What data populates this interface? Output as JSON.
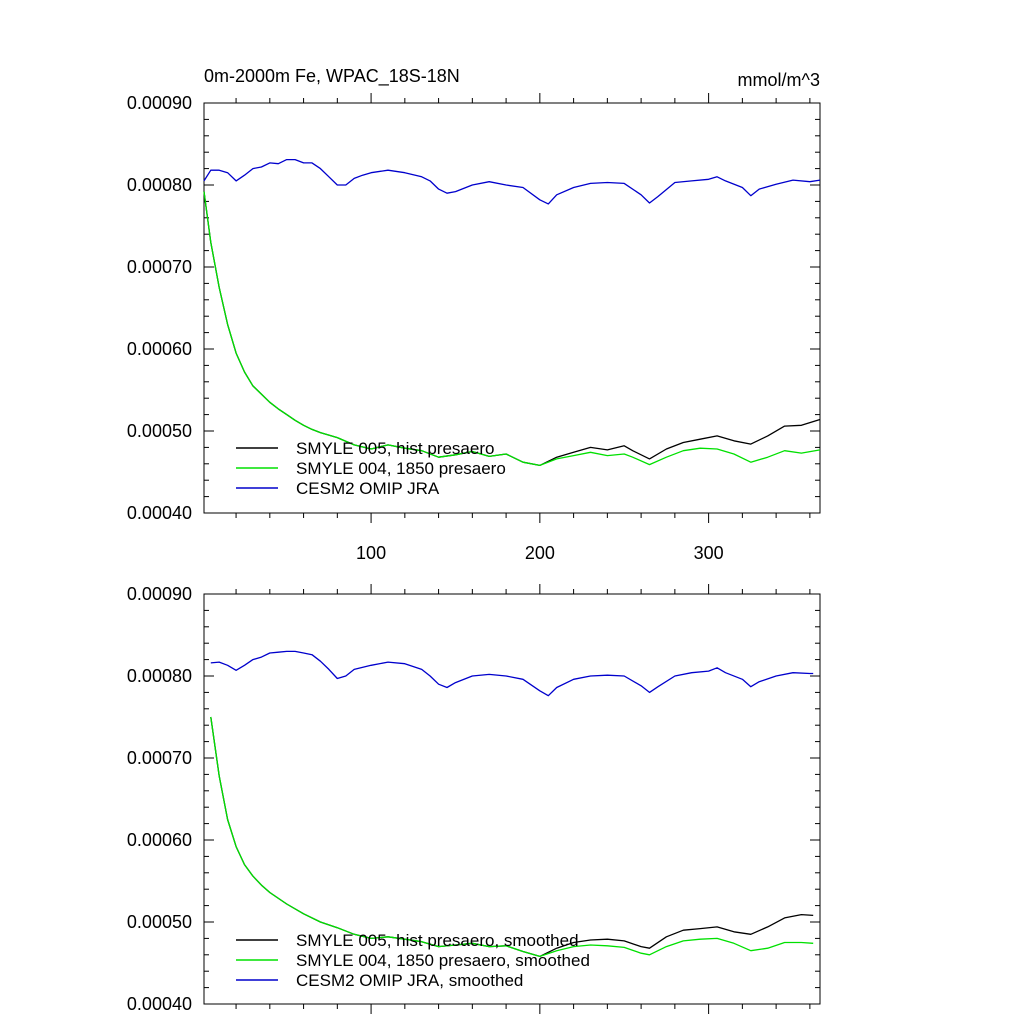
{
  "colors": {
    "smyle005": "#000000",
    "smyle004": "#00e000",
    "omip": "#0000cc"
  },
  "chart_data": [
    {
      "type": "line",
      "title": "0m-2000m Fe, WPAC_18S-18N",
      "units": "mmol/m^3",
      "xlabel": "",
      "ylabel": "",
      "xlim": [
        1,
        366
      ],
      "ylim": [
        0.0004,
        0.0009
      ],
      "yticks": [
        "0.00040",
        "0.00050",
        "0.00060",
        "0.00070",
        "0.00080",
        "0.00090"
      ],
      "xticks": [
        "100",
        "200",
        "300"
      ],
      "legend_position": "bottom-left",
      "grid": false,
      "series": [
        {
          "name": "SMYLE 005, hist presaero",
          "color_key": "smyle005",
          "x": [
            1,
            5,
            10,
            15,
            20,
            25,
            30,
            35,
            40,
            45,
            50,
            55,
            60,
            65,
            70,
            75,
            80,
            90,
            100,
            110,
            120,
            130,
            140,
            150,
            160,
            170,
            180,
            190,
            200,
            210,
            220,
            230,
            240,
            250,
            255,
            265,
            275,
            285,
            295,
            305,
            315,
            325,
            335,
            345,
            355,
            366
          ],
          "y": [
            0.000792,
            0.00073,
            0.000675,
            0.00063,
            0.000595,
            0.000572,
            0.000555,
            0.000545,
            0.000535,
            0.000527,
            0.00052,
            0.000513,
            0.000507,
            0.000502,
            0.000498,
            0.000495,
            0.000492,
            0.000483,
            0.000478,
            0.000483,
            0.000479,
            0.000476,
            0.000468,
            0.000471,
            0.000475,
            0.000469,
            0.000472,
            0.000462,
            0.000458,
            0.000468,
            0.000474,
            0.00048,
            0.000477,
            0.000482,
            0.000476,
            0.000466,
            0.000478,
            0.000486,
            0.00049,
            0.000494,
            0.000488,
            0.000484,
            0.000494,
            0.000506,
            0.000507,
            0.000514
          ]
        },
        {
          "name": "SMYLE 004, 1850 presaero",
          "color_key": "smyle004",
          "x": [
            1,
            5,
            10,
            15,
            20,
            25,
            30,
            35,
            40,
            45,
            50,
            55,
            60,
            65,
            70,
            75,
            80,
            90,
            100,
            110,
            120,
            130,
            140,
            150,
            160,
            170,
            180,
            190,
            200,
            210,
            220,
            230,
            240,
            250,
            255,
            265,
            275,
            285,
            295,
            305,
            315,
            325,
            335,
            345,
            355,
            366
          ],
          "y": [
            0.000792,
            0.00073,
            0.000675,
            0.00063,
            0.000595,
            0.000572,
            0.000555,
            0.000545,
            0.000535,
            0.000527,
            0.00052,
            0.000513,
            0.000507,
            0.000502,
            0.000498,
            0.000495,
            0.000492,
            0.000483,
            0.000478,
            0.000483,
            0.000479,
            0.000476,
            0.000468,
            0.000471,
            0.000475,
            0.000469,
            0.000472,
            0.000462,
            0.000458,
            0.000466,
            0.00047,
            0.000474,
            0.00047,
            0.000472,
            0.000468,
            0.000459,
            0.000468,
            0.000476,
            0.000479,
            0.000478,
            0.000472,
            0.000462,
            0.000468,
            0.000476,
            0.000473,
            0.000477
          ]
        },
        {
          "name": "CESM2 OMIP JRA",
          "color_key": "omip",
          "x": [
            1,
            5,
            10,
            15,
            20,
            25,
            30,
            35,
            40,
            45,
            50,
            55,
            60,
            65,
            70,
            75,
            80,
            85,
            90,
            95,
            100,
            110,
            120,
            130,
            135,
            140,
            145,
            150,
            160,
            170,
            180,
            190,
            200,
            205,
            210,
            220,
            230,
            240,
            250,
            260,
            265,
            270,
            280,
            290,
            300,
            305,
            310,
            320,
            325,
            330,
            340,
            350,
            360,
            366
          ],
          "y": [
            0.000805,
            0.000818,
            0.000818,
            0.000815,
            0.000805,
            0.000812,
            0.00082,
            0.000822,
            0.000827,
            0.000826,
            0.000831,
            0.000831,
            0.000827,
            0.000827,
            0.00082,
            0.00081,
            0.0008,
            0.0008,
            0.000808,
            0.000812,
            0.000815,
            0.000818,
            0.000815,
            0.00081,
            0.000805,
            0.000795,
            0.00079,
            0.000792,
            0.0008,
            0.000804,
            0.0008,
            0.000797,
            0.000782,
            0.000777,
            0.000788,
            0.000797,
            0.000802,
            0.000803,
            0.000802,
            0.000788,
            0.000778,
            0.000786,
            0.000803,
            0.000805,
            0.000807,
            0.00081,
            0.000805,
            0.000797,
            0.000787,
            0.000795,
            0.000801,
            0.000806,
            0.000804,
            0.000806
          ]
        }
      ]
    },
    {
      "type": "line",
      "title": "",
      "units": "",
      "xlabel": "",
      "ylabel": "",
      "xlim": [
        1,
        366
      ],
      "ylim": [
        0.0004,
        0.0009
      ],
      "yticks": [
        "0.00040",
        "0.00050",
        "0.00060",
        "0.00070",
        "0.00080",
        "0.00090"
      ],
      "xticks": [],
      "legend_position": "bottom-left",
      "grid": false,
      "series": [
        {
          "name": "SMYLE 005, hist presaero, smoothed",
          "color_key": "smyle005",
          "x": [
            5,
            10,
            15,
            20,
            25,
            30,
            35,
            40,
            50,
            60,
            70,
            80,
            90,
            100,
            110,
            120,
            130,
            140,
            150,
            160,
            170,
            180,
            190,
            200,
            210,
            220,
            230,
            240,
            250,
            260,
            265,
            275,
            285,
            295,
            305,
            315,
            325,
            335,
            345,
            355,
            362
          ],
          "y": [
            0.00075,
            0.000678,
            0.000625,
            0.000592,
            0.00057,
            0.000556,
            0.000545,
            0.000536,
            0.000522,
            0.00051,
            0.0005,
            0.000493,
            0.000485,
            0.00048,
            0.000482,
            0.000479,
            0.000476,
            0.00047,
            0.000472,
            0.000474,
            0.00047,
            0.000471,
            0.000464,
            0.000458,
            0.000468,
            0.000475,
            0.000478,
            0.000479,
            0.000477,
            0.00047,
            0.000468,
            0.000482,
            0.00049,
            0.000492,
            0.000494,
            0.000488,
            0.000485,
            0.000494,
            0.000505,
            0.000509,
            0.000508
          ]
        },
        {
          "name": "SMYLE 004, 1850 presaero, smoothed",
          "color_key": "smyle004",
          "x": [
            5,
            10,
            15,
            20,
            25,
            30,
            35,
            40,
            50,
            60,
            70,
            80,
            90,
            100,
            110,
            120,
            130,
            140,
            150,
            160,
            170,
            180,
            190,
            200,
            210,
            220,
            230,
            240,
            250,
            260,
            265,
            275,
            285,
            295,
            305,
            315,
            325,
            335,
            345,
            355,
            362
          ],
          "y": [
            0.00075,
            0.000678,
            0.000625,
            0.000592,
            0.00057,
            0.000556,
            0.000545,
            0.000536,
            0.000522,
            0.00051,
            0.0005,
            0.000493,
            0.000485,
            0.00048,
            0.000482,
            0.000479,
            0.000476,
            0.00047,
            0.000472,
            0.000474,
            0.00047,
            0.000471,
            0.000464,
            0.000458,
            0.000465,
            0.00047,
            0.000472,
            0.000471,
            0.000469,
            0.000462,
            0.00046,
            0.00047,
            0.000477,
            0.000479,
            0.00048,
            0.000474,
            0.000465,
            0.000468,
            0.000475,
            0.000475,
            0.000474
          ]
        },
        {
          "name": "CESM2 OMIP JRA, smoothed",
          "color_key": "omip",
          "x": [
            5,
            10,
            15,
            20,
            25,
            30,
            35,
            40,
            45,
            50,
            55,
            60,
            65,
            70,
            75,
            80,
            85,
            90,
            100,
            110,
            120,
            130,
            135,
            140,
            145,
            150,
            160,
            170,
            180,
            190,
            200,
            205,
            210,
            220,
            230,
            240,
            250,
            260,
            265,
            270,
            280,
            290,
            300,
            305,
            310,
            320,
            325,
            330,
            340,
            350,
            360,
            362
          ],
          "y": [
            0.000816,
            0.000817,
            0.000813,
            0.000807,
            0.000813,
            0.00082,
            0.000823,
            0.000828,
            0.000829,
            0.00083,
            0.00083,
            0.000828,
            0.000826,
            0.000818,
            0.000808,
            0.000797,
            0.0008,
            0.000808,
            0.000813,
            0.000817,
            0.000815,
            0.000808,
            0.0008,
            0.00079,
            0.000786,
            0.000792,
            0.0008,
            0.000802,
            0.0008,
            0.000796,
            0.000782,
            0.000776,
            0.000786,
            0.000796,
            0.0008,
            0.000801,
            0.0008,
            0.000788,
            0.00078,
            0.000787,
            0.0008,
            0.000804,
            0.000806,
            0.00081,
            0.000804,
            0.000796,
            0.000787,
            0.000793,
            0.0008,
            0.000804,
            0.000803,
            0.000803
          ]
        }
      ]
    }
  ]
}
